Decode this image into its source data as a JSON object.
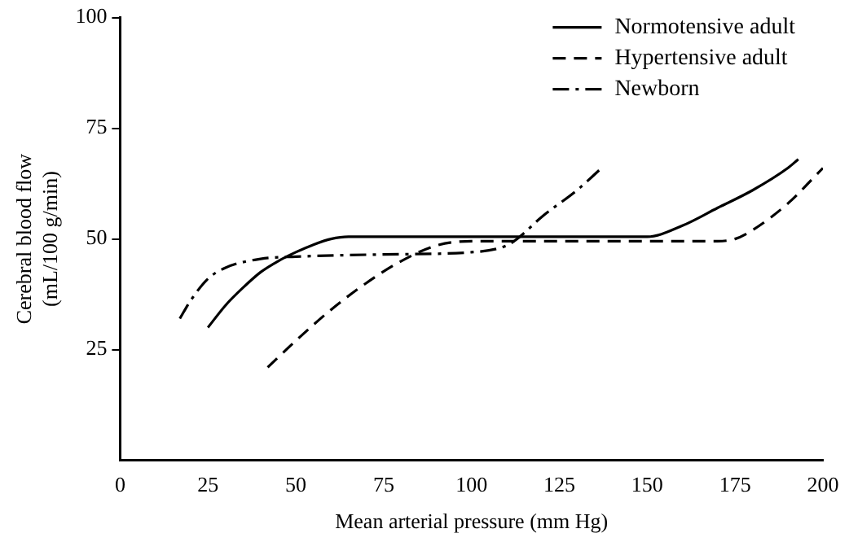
{
  "chart_data": {
    "type": "line",
    "xlabel": "Mean arterial pressure (mm Hg)",
    "ylabel": "Cerebral blood flow\n(mL/100 g/min)",
    "xlim": [
      0,
      200
    ],
    "xticks": [
      0,
      25,
      50,
      75,
      100,
      125,
      150,
      175,
      200
    ],
    "ylim": [
      0,
      100
    ],
    "yticks": [
      25,
      50,
      75,
      100
    ],
    "grid": false,
    "legend": "top right",
    "marker": "none",
    "series": [
      {
        "name": "Normotensive adult",
        "color": "#000000",
        "line_style": "solid",
        "x": [
          25,
          30,
          35,
          40,
          45,
          50,
          55,
          60,
          65,
          70,
          100,
          150,
          160,
          170,
          180,
          190,
          193
        ],
        "values": [
          30,
          35,
          39,
          42.5,
          45,
          47,
          48.7,
          50,
          50.5,
          50.5,
          50.5,
          50.5,
          53,
          57,
          61,
          66,
          68
        ]
      },
      {
        "name": "Hypertensive adult",
        "color": "#000000",
        "line_style": "dashed",
        "x": [
          42,
          50,
          60,
          70,
          80,
          90,
          100,
          125,
          150,
          170,
          175,
          180,
          190,
          200
        ],
        "values": [
          21,
          27,
          34,
          40,
          45,
          48.5,
          49.5,
          49.5,
          49.5,
          49.5,
          50,
          52,
          58,
          66
        ]
      },
      {
        "name": "Newborn",
        "color": "#000000",
        "line_style": "dashdot",
        "x": [
          17,
          20,
          25,
          30,
          40,
          50,
          75,
          100,
          110,
          113,
          120,
          130,
          137
        ],
        "values": [
          32,
          36,
          41,
          43.5,
          45.5,
          46,
          46.5,
          47,
          48.5,
          50,
          55,
          61,
          66
        ]
      }
    ]
  }
}
